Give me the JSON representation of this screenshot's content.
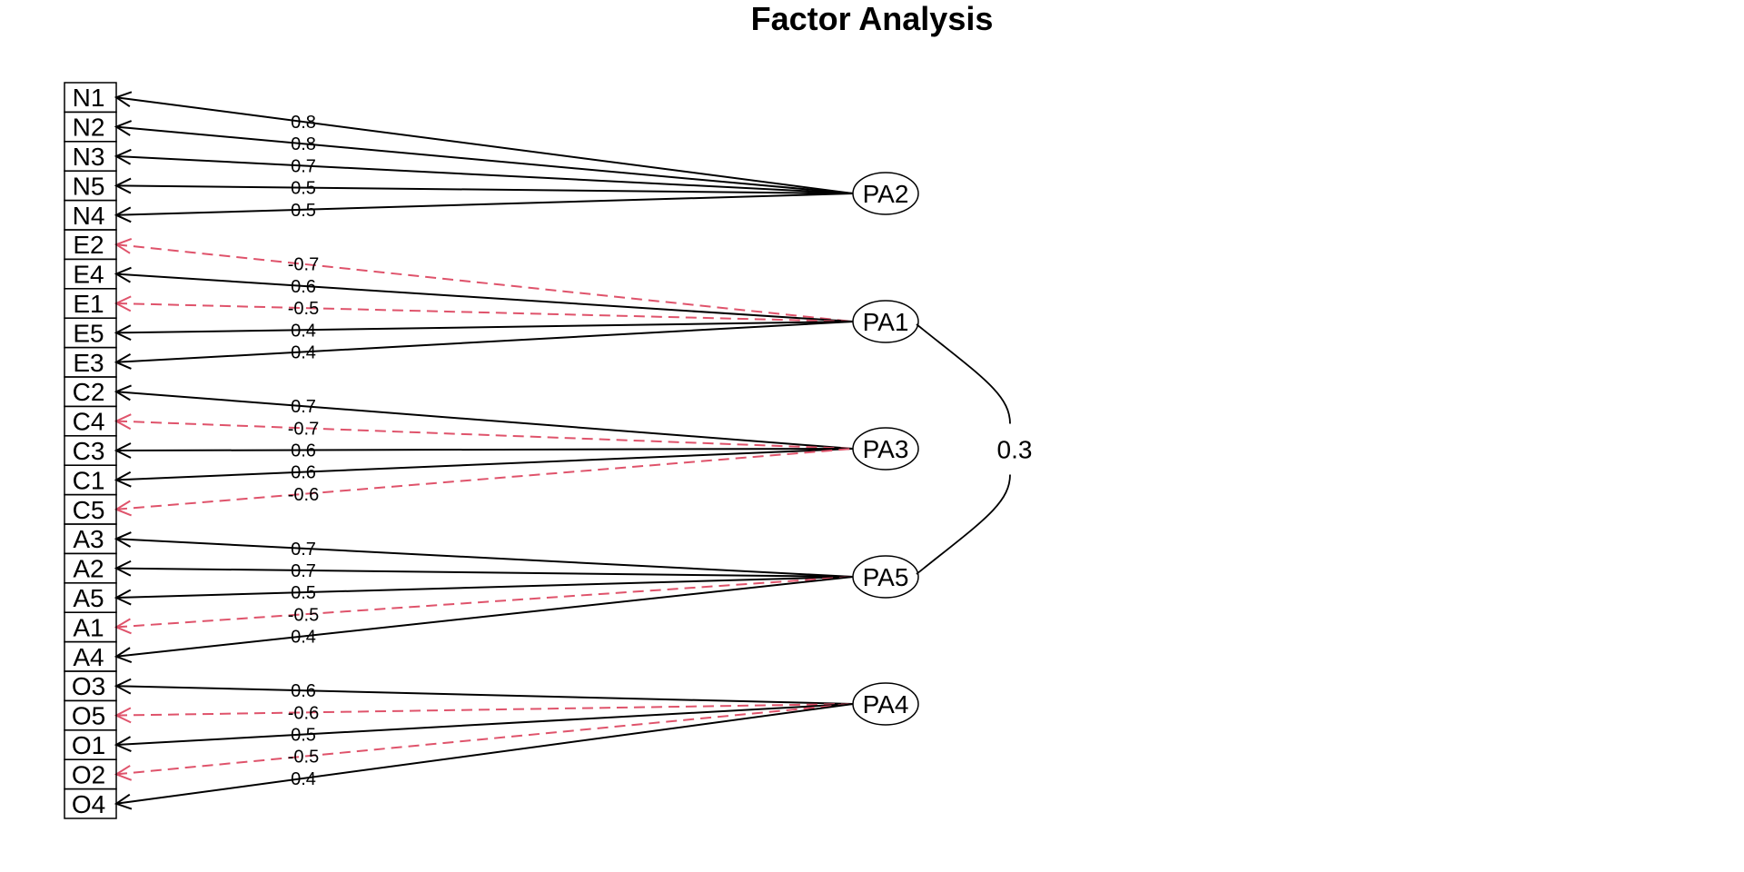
{
  "title": "Factor Analysis",
  "colors": {
    "positive": "#000000",
    "negative": "#DF536B"
  },
  "items": [
    "N1",
    "N2",
    "N3",
    "N5",
    "N4",
    "E2",
    "E4",
    "E1",
    "E5",
    "E3",
    "C2",
    "C4",
    "C3",
    "C1",
    "C5",
    "A3",
    "A2",
    "A5",
    "A1",
    "A4",
    "O3",
    "O5",
    "O1",
    "O2",
    "O4"
  ],
  "factors": [
    "PA2",
    "PA1",
    "PA3",
    "PA5",
    "PA4"
  ],
  "loadings": [
    {
      "item": "N1",
      "factor": "PA2",
      "value": "0.8"
    },
    {
      "item": "N2",
      "factor": "PA2",
      "value": "0.8"
    },
    {
      "item": "N3",
      "factor": "PA2",
      "value": "0.7"
    },
    {
      "item": "N5",
      "factor": "PA2",
      "value": "0.5"
    },
    {
      "item": "N4",
      "factor": "PA2",
      "value": "0.5"
    },
    {
      "item": "E2",
      "factor": "PA1",
      "value": "-0.7"
    },
    {
      "item": "E4",
      "factor": "PA1",
      "value": "0.6"
    },
    {
      "item": "E1",
      "factor": "PA1",
      "value": "-0.5"
    },
    {
      "item": "E5",
      "factor": "PA1",
      "value": "0.4"
    },
    {
      "item": "E3",
      "factor": "PA1",
      "value": "0.4"
    },
    {
      "item": "C2",
      "factor": "PA3",
      "value": "0.7"
    },
    {
      "item": "C4",
      "factor": "PA3",
      "value": "-0.7"
    },
    {
      "item": "C3",
      "factor": "PA3",
      "value": "0.6"
    },
    {
      "item": "C1",
      "factor": "PA3",
      "value": "0.6"
    },
    {
      "item": "C5",
      "factor": "PA3",
      "value": "-0.6"
    },
    {
      "item": "A3",
      "factor": "PA5",
      "value": "0.7"
    },
    {
      "item": "A2",
      "factor": "PA5",
      "value": "0.7"
    },
    {
      "item": "A5",
      "factor": "PA5",
      "value": "0.5"
    },
    {
      "item": "A1",
      "factor": "PA5",
      "value": "-0.5"
    },
    {
      "item": "A4",
      "factor": "PA5",
      "value": "0.4"
    },
    {
      "item": "O3",
      "factor": "PA4",
      "value": "0.6"
    },
    {
      "item": "O5",
      "factor": "PA4",
      "value": "-0.6"
    },
    {
      "item": "O1",
      "factor": "PA4",
      "value": "0.5"
    },
    {
      "item": "O2",
      "factor": "PA4",
      "value": "-0.5"
    },
    {
      "item": "O4",
      "factor": "PA4",
      "value": "0.4"
    }
  ],
  "correlations": [
    {
      "from": "PA1",
      "to": "PA5",
      "value": "0.3"
    }
  ]
}
